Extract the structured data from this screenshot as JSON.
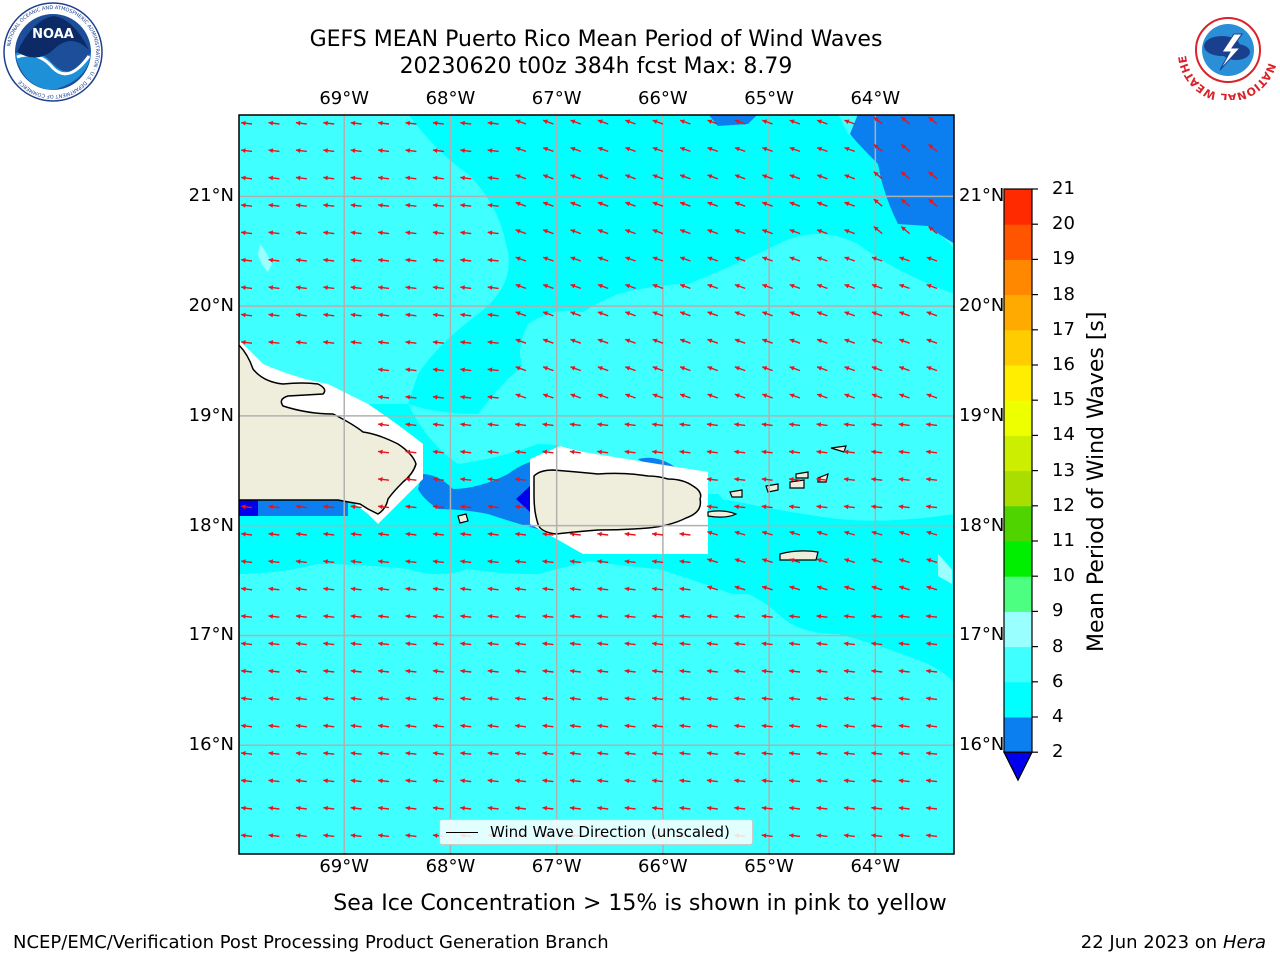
{
  "header": {
    "title_line1": "GEFS MEAN Puerto Rico Mean Period of Wind Waves",
    "title_line2": "20230620 t00z 384h fcst   Max: 8.79"
  },
  "logos": {
    "left": {
      "name": "noaa-logo",
      "text": "NOAA",
      "ring_text": "NATIONAL OCEANIC AND ATMOSPHERIC ADMINISTRATION · U.S. DEPARTMENT OF COMMERCE"
    },
    "right": {
      "name": "nws-logo",
      "ring_text": "NATIONAL WEATHER SERVICE"
    }
  },
  "map": {
    "lon_range": [
      -70.0,
      -63.25
    ],
    "lat_range": [
      15.0,
      21.75
    ],
    "lon_labels": [
      "69°W",
      "68°W",
      "67°W",
      "66°W",
      "65°W",
      "64°W"
    ],
    "lat_labels": [
      "21°N",
      "20°N",
      "19°N",
      "18°N",
      "17°N",
      "16°N"
    ],
    "lon_values": [
      -69,
      -68,
      -67,
      -66,
      -65,
      -64
    ],
    "lat_values": [
      21,
      20,
      19,
      18,
      17,
      16
    ],
    "grid": true,
    "arrow_color": "#e8141c",
    "legend": {
      "label": "Wind Wave Direction (unscaled)"
    }
  },
  "colorbar": {
    "label": "Mean Period of Wind Waves [s]",
    "ticks": [
      "2",
      "4",
      "6",
      "8",
      "9",
      "10",
      "11",
      "12",
      "13",
      "14",
      "15",
      "16",
      "17",
      "18",
      "19",
      "20",
      "21"
    ],
    "colors": [
      "#0b7ff0",
      "#00ffff",
      "#40ffff",
      "#99ffff",
      "#4cff80",
      "#00ee00",
      "#50d400",
      "#aadd00",
      "#ccee00",
      "#eeff00",
      "#ffee00",
      "#ffcc00",
      "#ffaa00",
      "#ff8800",
      "#ff5500",
      "#ff2a00"
    ],
    "under_color": "#0000ee"
  },
  "footer": {
    "note": "Sea Ice Concentration > 15% is shown in pink to yellow",
    "credit_left": "NCEP/EMC/Verification Post Processing Product Generation Branch",
    "credit_date": "22 Jun 2023 on",
    "credit_host": "Hera"
  },
  "colors": {
    "sea_light": "#40ffff",
    "sea_cyan": "#00ffff",
    "sea_pale": "#99ffff",
    "sea_blue": "#0b7ff0",
    "sea_deep": "#0000ee",
    "land": "#efeedd"
  }
}
